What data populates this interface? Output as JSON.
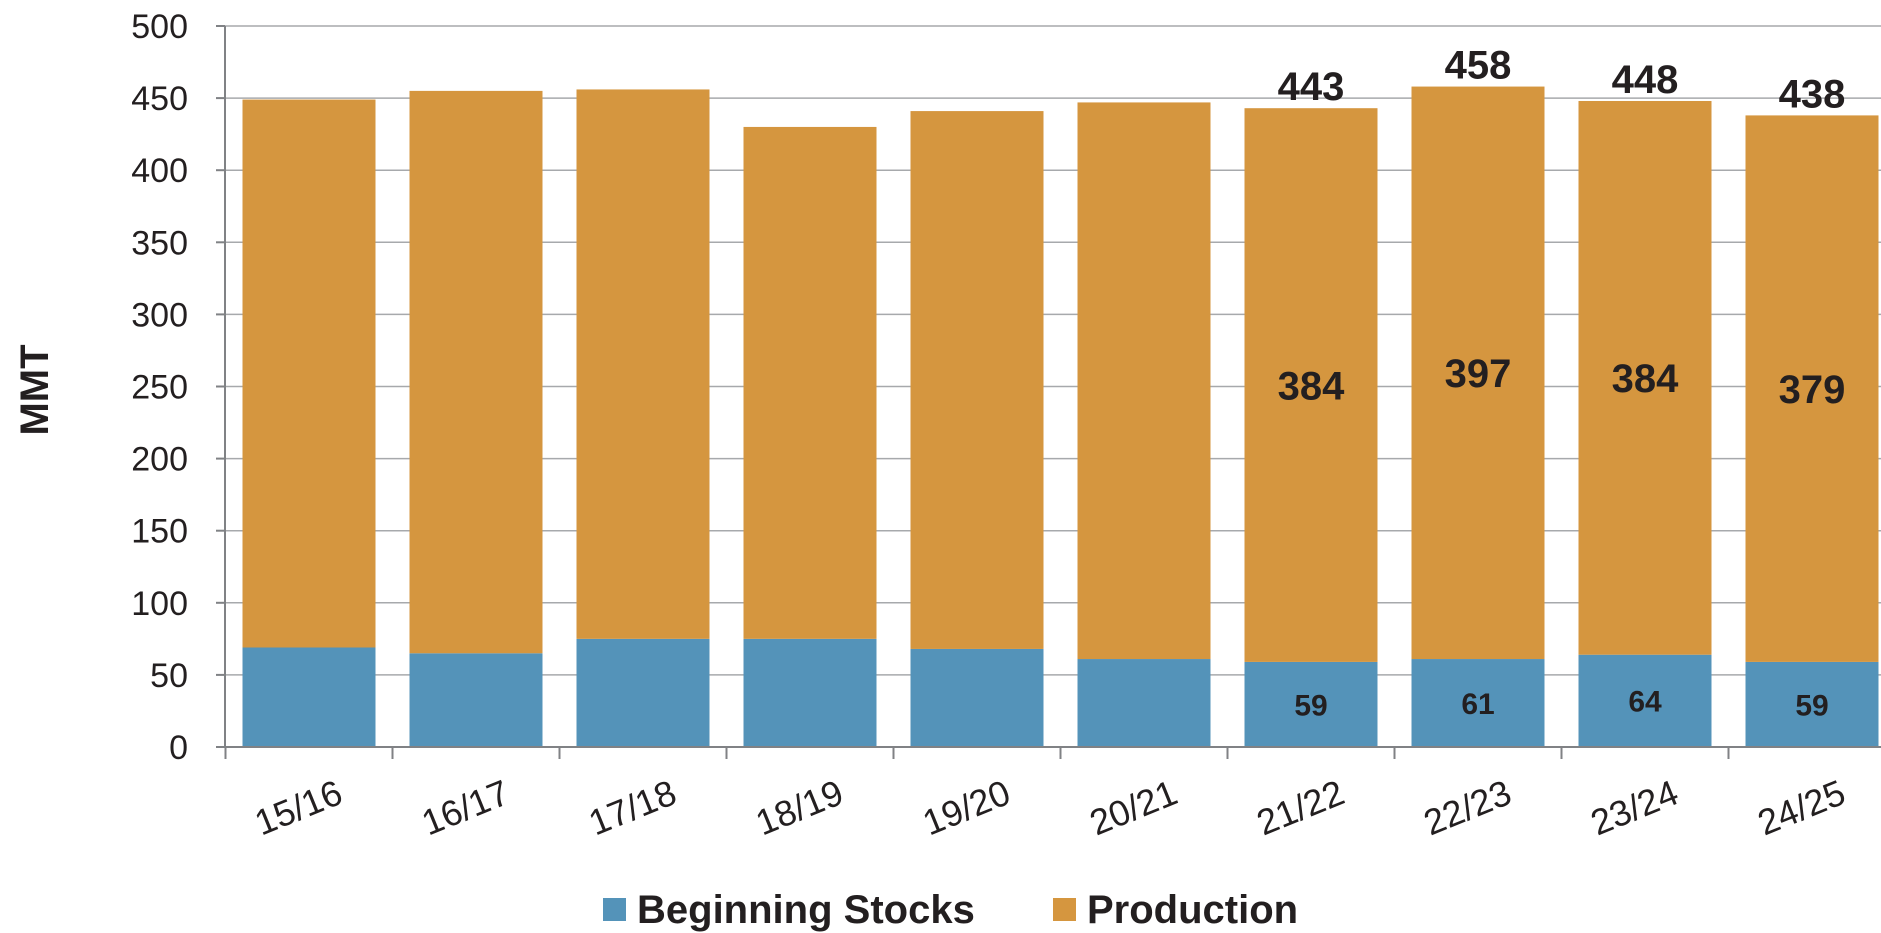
{
  "chart_data": {
    "type": "bar",
    "stacked": true,
    "ylabel": "MMT",
    "ylim": [
      0,
      500
    ],
    "yticks": [
      0,
      50,
      100,
      150,
      200,
      250,
      300,
      350,
      400,
      450,
      500
    ],
    "categories": [
      "15/16",
      "16/17",
      "17/18",
      "18/19",
      "19/20",
      "20/21",
      "21/22",
      "22/23",
      "23/24",
      "24/25"
    ],
    "series": [
      {
        "name": "Beginning Stocks",
        "color": "#5493b9",
        "values": [
          69,
          65,
          75,
          75,
          68,
          61,
          59,
          61,
          64,
          59
        ],
        "labels": [
          "",
          "",
          "",
          "",
          "",
          "",
          "59",
          "61",
          "64",
          "59"
        ]
      },
      {
        "name": "Production",
        "color": "#d5963f",
        "values": [
          380,
          390,
          381,
          355,
          373,
          386,
          384,
          397,
          384,
          379
        ],
        "labels": [
          "",
          "",
          "",
          "",
          "",
          "",
          "384",
          "397",
          "384",
          "379"
        ]
      }
    ],
    "totals": [
      "",
      "",
      "",
      "",
      "",
      "",
      "443",
      "458",
      "448",
      "438"
    ],
    "grid": true,
    "legend": "bottom"
  }
}
